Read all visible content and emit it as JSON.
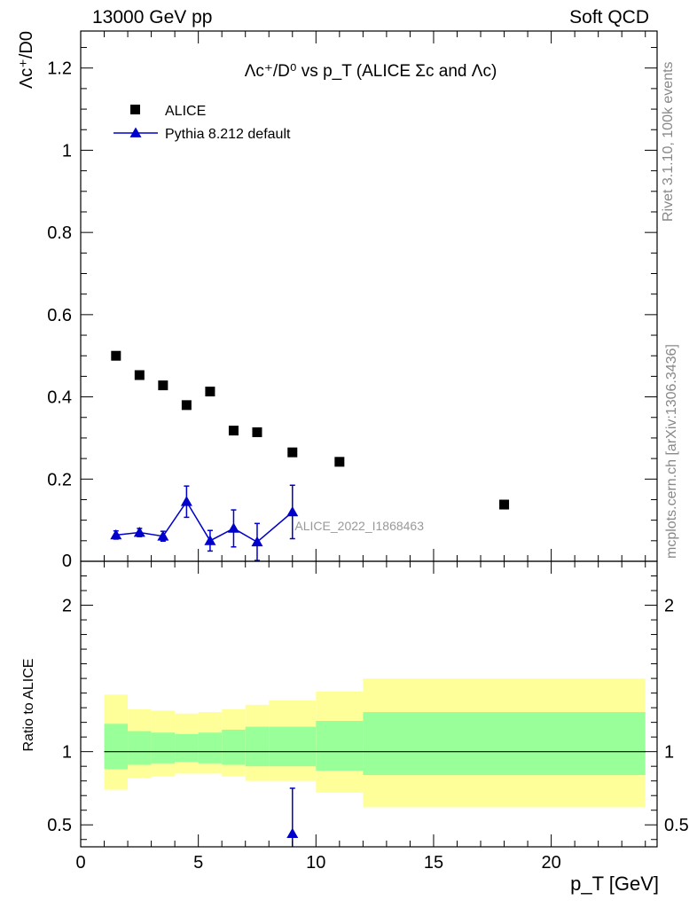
{
  "header": {
    "left": "13000 GeV pp",
    "right": "Soft QCD"
  },
  "side_labels": {
    "rivet": "Rivet 3.1.10,  100k events",
    "mcplots": "mcplots.cern.ch [arXiv:1306.3436]"
  },
  "colors": {
    "data": "#000000",
    "mc": "#0000cc",
    "band_inner": "#99ff99",
    "band_outer": "#ffff99",
    "watermark": "#999999"
  },
  "chart_data": [
    {
      "type": "scatter",
      "title": "Λc⁺/D⁰ vs p_T (ALICE Σc and Λc)",
      "ylabel": "Λc⁺/D0",
      "xlim": [
        0,
        24.5
      ],
      "ylim": [
        0,
        1.29
      ],
      "x_ticks": [
        0,
        5,
        10,
        15,
        20
      ],
      "y_ticks": [
        0.2,
        0.4,
        0.6,
        0.8,
        1.0,
        1.2
      ],
      "y_tick_labels": [
        "0.2",
        "0.4",
        "0.6",
        "0.8",
        "1",
        "1.2"
      ],
      "zero_label": "0",
      "annotation": "ALICE_2022_I1868463",
      "legend_position": "top-left",
      "series": [
        {
          "name": "ALICE",
          "marker": "square",
          "x": [
            1.5,
            2.5,
            3.5,
            4.5,
            5.5,
            6.5,
            7.5,
            9.0,
            11.0,
            18.0
          ],
          "y": [
            0.5,
            0.453,
            0.428,
            0.38,
            0.413,
            0.318,
            0.314,
            0.265,
            0.242,
            0.138
          ],
          "xlow": [
            1,
            2,
            3,
            4,
            5,
            6,
            7,
            8,
            10,
            12
          ],
          "xhigh": [
            2,
            3,
            4,
            5,
            6,
            7,
            8,
            10,
            12,
            24
          ],
          "yerr": [
            0,
            0,
            0,
            0,
            0,
            0,
            0,
            0,
            0,
            0
          ]
        },
        {
          "name": "Pythia 8.212 default",
          "marker": "triangle",
          "x": [
            1.5,
            2.5,
            3.5,
            4.5,
            5.5,
            6.5,
            7.5,
            9.0
          ],
          "y": [
            0.064,
            0.07,
            0.061,
            0.145,
            0.05,
            0.08,
            0.047,
            0.12
          ],
          "yerr": [
            0.01,
            0.01,
            0.012,
            0.038,
            0.025,
            0.045,
            0.045,
            0.065
          ]
        }
      ]
    },
    {
      "type": "scatter",
      "xlabel": "p_T [GeV]",
      "ylabel": "Ratio to ALICE",
      "xlim": [
        0,
        24.5
      ],
      "ylim": [
        0.35,
        2.3
      ],
      "x_ticks": [
        0,
        5,
        10,
        15,
        20
      ],
      "x_tick_labels": [
        "0",
        "5",
        "10",
        "15",
        "20"
      ],
      "y_ticks": [
        0.5,
        1,
        2
      ],
      "y_tick_labels": [
        "0.5",
        "1",
        "2"
      ],
      "bands": [
        {
          "xlow": 1,
          "xhigh": 2,
          "outer": [
            0.74,
            1.39
          ],
          "inner": [
            0.88,
            1.19
          ]
        },
        {
          "xlow": 2,
          "xhigh": 3,
          "outer": [
            0.82,
            1.29
          ],
          "inner": [
            0.91,
            1.14
          ]
        },
        {
          "xlow": 3,
          "xhigh": 4,
          "outer": [
            0.83,
            1.28
          ],
          "inner": [
            0.92,
            1.13
          ]
        },
        {
          "xlow": 4,
          "xhigh": 5,
          "outer": [
            0.85,
            1.26
          ],
          "inner": [
            0.93,
            1.12
          ]
        },
        {
          "xlow": 5,
          "xhigh": 6,
          "outer": [
            0.85,
            1.27
          ],
          "inner": [
            0.92,
            1.13
          ]
        },
        {
          "xlow": 6,
          "xhigh": 7,
          "outer": [
            0.83,
            1.29
          ],
          "inner": [
            0.91,
            1.15
          ]
        },
        {
          "xlow": 7,
          "xhigh": 8,
          "outer": [
            0.8,
            1.32
          ],
          "inner": [
            0.9,
            1.17
          ]
        },
        {
          "xlow": 8,
          "xhigh": 10,
          "outer": [
            0.8,
            1.35
          ],
          "inner": [
            0.9,
            1.17
          ]
        },
        {
          "xlow": 10,
          "xhigh": 12,
          "outer": [
            0.72,
            1.41
          ],
          "inner": [
            0.87,
            1.21
          ]
        },
        {
          "xlow": 12,
          "xhigh": 24,
          "outer": [
            0.62,
            1.5
          ],
          "inner": [
            0.84,
            1.27
          ]
        }
      ],
      "series": [
        {
          "name": "Pythia 8.212 default",
          "marker": "triangle",
          "x": [
            9.0
          ],
          "y": [
            0.44
          ],
          "yerr_low": [
            0.1
          ],
          "yerr_high": [
            0.31
          ]
        }
      ]
    }
  ]
}
